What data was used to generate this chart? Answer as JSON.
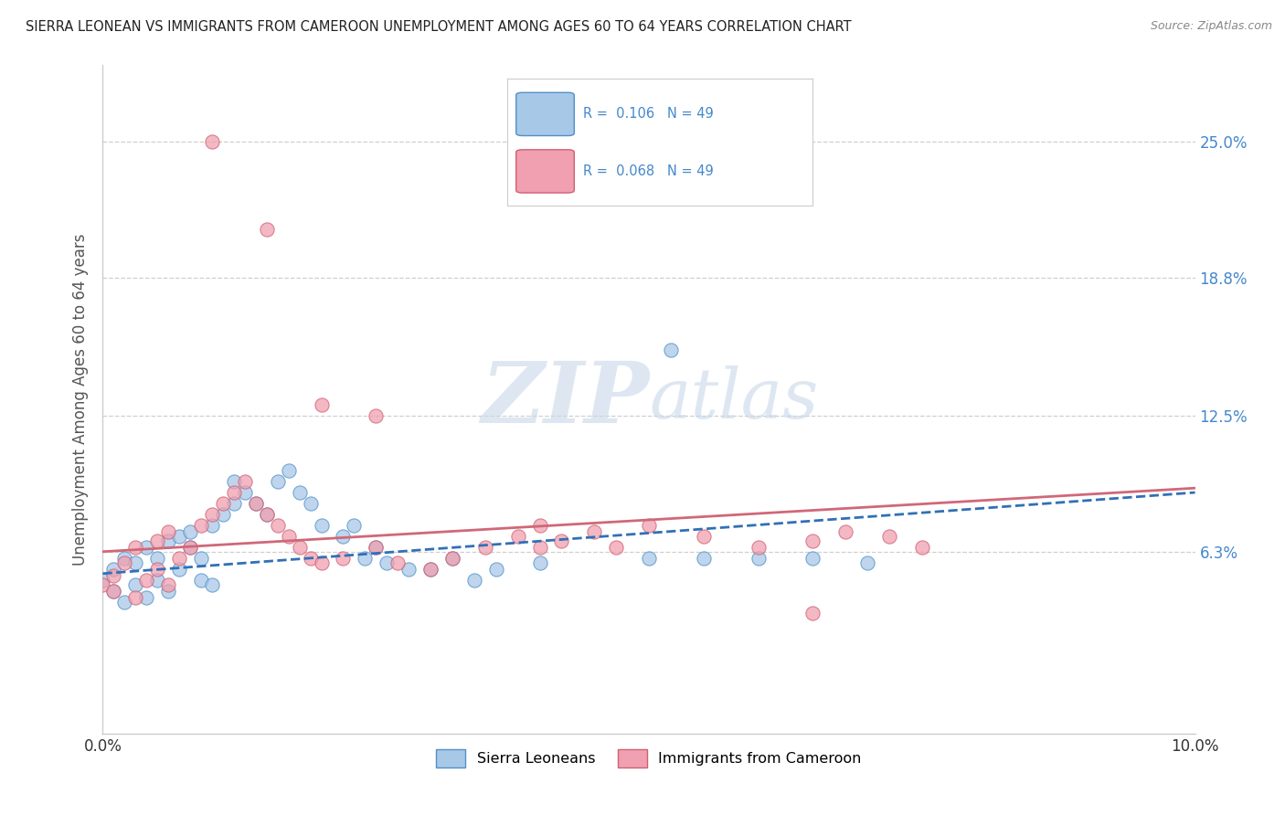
{
  "title": "SIERRA LEONEAN VS IMMIGRANTS FROM CAMEROON UNEMPLOYMENT AMONG AGES 60 TO 64 YEARS CORRELATION CHART",
  "source": "Source: ZipAtlas.com",
  "ylabel": "Unemployment Among Ages 60 to 64 years",
  "ytick_labels": [
    "25.0%",
    "18.8%",
    "12.5%",
    "6.3%"
  ],
  "ytick_values": [
    0.25,
    0.188,
    0.125,
    0.063
  ],
  "xlim": [
    0.0,
    0.1
  ],
  "ylim": [
    -0.02,
    0.285
  ],
  "legend_label1": "Sierra Leoneans",
  "legend_label2": "Immigrants from Cameroon",
  "color_blue": "#a8c8e8",
  "color_pink": "#f0a0b0",
  "edge_blue": "#5090c8",
  "edge_pink": "#d06070",
  "trendline_blue": "#3070b8",
  "trendline_pink": "#d06878",
  "watermark_color": "#c8d8e8",
  "background_color": "#ffffff",
  "grid_color": "#bbbbbb",
  "blue_x": [
    0.0,
    0.001,
    0.001,
    0.002,
    0.002,
    0.003,
    0.003,
    0.004,
    0.004,
    0.005,
    0.005,
    0.006,
    0.006,
    0.007,
    0.007,
    0.008,
    0.008,
    0.009,
    0.009,
    0.01,
    0.01,
    0.011,
    0.012,
    0.012,
    0.013,
    0.014,
    0.015,
    0.016,
    0.017,
    0.018,
    0.019,
    0.02,
    0.022,
    0.023,
    0.024,
    0.025,
    0.026,
    0.028,
    0.03,
    0.032,
    0.034,
    0.036,
    0.04,
    0.05,
    0.052,
    0.055,
    0.06,
    0.065,
    0.07
  ],
  "blue_y": [
    0.05,
    0.045,
    0.055,
    0.04,
    0.06,
    0.048,
    0.058,
    0.042,
    0.065,
    0.05,
    0.06,
    0.045,
    0.068,
    0.07,
    0.055,
    0.065,
    0.072,
    0.05,
    0.06,
    0.048,
    0.075,
    0.08,
    0.085,
    0.095,
    0.09,
    0.085,
    0.08,
    0.095,
    0.1,
    0.09,
    0.085,
    0.075,
    0.07,
    0.075,
    0.06,
    0.065,
    0.058,
    0.055,
    0.055,
    0.06,
    0.05,
    0.055,
    0.058,
    0.06,
    0.155,
    0.06,
    0.06,
    0.06,
    0.058
  ],
  "pink_x": [
    0.0,
    0.001,
    0.001,
    0.002,
    0.003,
    0.003,
    0.004,
    0.005,
    0.005,
    0.006,
    0.006,
    0.007,
    0.008,
    0.009,
    0.01,
    0.011,
    0.012,
    0.013,
    0.014,
    0.015,
    0.016,
    0.017,
    0.018,
    0.019,
    0.02,
    0.022,
    0.025,
    0.027,
    0.03,
    0.032,
    0.035,
    0.038,
    0.04,
    0.042,
    0.045,
    0.047,
    0.05,
    0.055,
    0.06,
    0.065,
    0.068,
    0.072,
    0.075,
    0.01,
    0.015,
    0.02,
    0.025,
    0.04,
    0.065
  ],
  "pink_y": [
    0.048,
    0.052,
    0.045,
    0.058,
    0.042,
    0.065,
    0.05,
    0.055,
    0.068,
    0.048,
    0.072,
    0.06,
    0.065,
    0.075,
    0.08,
    0.085,
    0.09,
    0.095,
    0.085,
    0.08,
    0.075,
    0.07,
    0.065,
    0.06,
    0.058,
    0.06,
    0.065,
    0.058,
    0.055,
    0.06,
    0.065,
    0.07,
    0.075,
    0.068,
    0.072,
    0.065,
    0.075,
    0.07,
    0.065,
    0.068,
    0.072,
    0.07,
    0.065,
    0.25,
    0.21,
    0.13,
    0.125,
    0.065,
    0.035
  ],
  "blue_trend_x0": 0.0,
  "blue_trend_y0": 0.053,
  "blue_trend_x1": 0.1,
  "blue_trend_y1": 0.09,
  "pink_trend_x0": 0.0,
  "pink_trend_y0": 0.063,
  "pink_trend_x1": 0.1,
  "pink_trend_y1": 0.092
}
